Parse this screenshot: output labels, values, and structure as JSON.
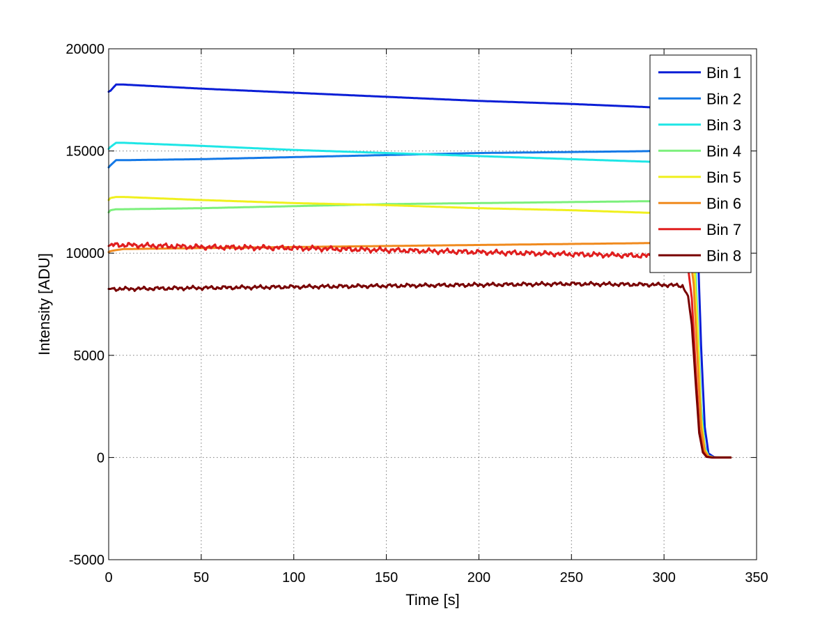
{
  "chart_data": {
    "type": "line",
    "title": "",
    "xlabel": "Time [s]",
    "ylabel": "Intensity [ADU]",
    "xlim": [
      0,
      350
    ],
    "ylim": [
      -5000,
      20000
    ],
    "xticks": [
      0,
      50,
      100,
      150,
      200,
      250,
      300,
      350
    ],
    "yticks": [
      -5000,
      0,
      5000,
      10000,
      15000,
      20000
    ],
    "xtick_labels": [
      "0",
      "50",
      "100",
      "150",
      "200",
      "250",
      "300",
      "350"
    ],
    "ytick_labels": [
      "-5000",
      "0",
      "5000",
      "10000",
      "15000",
      "20000"
    ],
    "grid": true,
    "legend_position": "top-right",
    "series": [
      {
        "name": "Bin 1",
        "color": "#0a1ed6",
        "noise": 0,
        "x": [
          0,
          1,
          4,
          8,
          50,
          100,
          150,
          200,
          250,
          290,
          300,
          310,
          314,
          316,
          318,
          320,
          322,
          324,
          327,
          330,
          336
        ],
        "y": [
          17900,
          17950,
          18250,
          18250,
          18050,
          17850,
          17650,
          17450,
          17300,
          17150,
          17100,
          16950,
          16300,
          14500,
          11000,
          5500,
          1500,
          200,
          20,
          0,
          0
        ]
      },
      {
        "name": "Bin 2",
        "color": "#1478e6",
        "noise": 0,
        "x": [
          0,
          1,
          4,
          8,
          50,
          100,
          150,
          200,
          250,
          300,
          312,
          315,
          317,
          319,
          321,
          323,
          325,
          328,
          336
        ],
        "y": [
          14200,
          14300,
          14550,
          14550,
          14600,
          14700,
          14800,
          14900,
          14950,
          15000,
          14900,
          13500,
          9000,
          4000,
          1000,
          150,
          20,
          0,
          0
        ]
      },
      {
        "name": "Bin 3",
        "color": "#1ee6e6",
        "noise": 0,
        "x": [
          0,
          1,
          4,
          8,
          50,
          100,
          150,
          200,
          250,
          300,
          311,
          314,
          316,
          318,
          320,
          322,
          324,
          327,
          336
        ],
        "y": [
          15100,
          15200,
          15400,
          15400,
          15250,
          15050,
          14900,
          14750,
          14600,
          14450,
          14400,
          13800,
          11500,
          7000,
          2500,
          500,
          80,
          0,
          0
        ]
      },
      {
        "name": "Bin 4",
        "color": "#7cf07c",
        "noise": 0,
        "x": [
          0,
          1,
          4,
          8,
          50,
          100,
          150,
          200,
          250,
          300,
          311,
          314,
          316,
          318,
          320,
          322,
          324,
          327,
          336
        ],
        "y": [
          12000,
          12100,
          12150,
          12150,
          12200,
          12300,
          12400,
          12450,
          12500,
          12550,
          12500,
          12000,
          10500,
          6500,
          2000,
          400,
          60,
          0,
          0
        ]
      },
      {
        "name": "Bin 5",
        "color": "#f0f01e",
        "noise": 0,
        "x": [
          0,
          1,
          4,
          8,
          50,
          100,
          150,
          200,
          250,
          300,
          311,
          314,
          316,
          318,
          320,
          322,
          324,
          327,
          336
        ],
        "y": [
          12600,
          12700,
          12750,
          12750,
          12600,
          12450,
          12350,
          12200,
          12100,
          11950,
          11850,
          11400,
          10000,
          6500,
          2000,
          400,
          60,
          0,
          0
        ]
      },
      {
        "name": "Bin 6",
        "color": "#f08a1e",
        "noise": 0,
        "x": [
          0,
          1,
          4,
          8,
          50,
          100,
          150,
          200,
          250,
          300,
          311,
          314,
          316,
          318,
          320,
          322,
          324,
          327,
          336
        ],
        "y": [
          10050,
          10100,
          10150,
          10200,
          10250,
          10300,
          10350,
          10400,
          10450,
          10500,
          10450,
          10000,
          8500,
          5000,
          1500,
          300,
          50,
          0,
          0
        ]
      },
      {
        "name": "Bin 7",
        "color": "#e01e1e",
        "noise": 120,
        "x": [
          0,
          1,
          4,
          8,
          50,
          100,
          150,
          200,
          250,
          300,
          310,
          313,
          315,
          317,
          319,
          321,
          323,
          326,
          336
        ],
        "y": [
          10350,
          10400,
          10400,
          10400,
          10300,
          10250,
          10150,
          10050,
          9950,
          9850,
          9800,
          9300,
          7800,
          4500,
          1400,
          300,
          40,
          0,
          0
        ]
      },
      {
        "name": "Bin 8",
        "color": "#780000",
        "noise": 90,
        "x": [
          0,
          1,
          4,
          8,
          50,
          100,
          150,
          200,
          250,
          300,
          310,
          313,
          315,
          317,
          319,
          321,
          323,
          326,
          336
        ],
        "y": [
          8250,
          8250,
          8250,
          8250,
          8300,
          8350,
          8400,
          8450,
          8500,
          8450,
          8400,
          7900,
          6500,
          3800,
          1200,
          250,
          30,
          0,
          0
        ]
      }
    ]
  }
}
